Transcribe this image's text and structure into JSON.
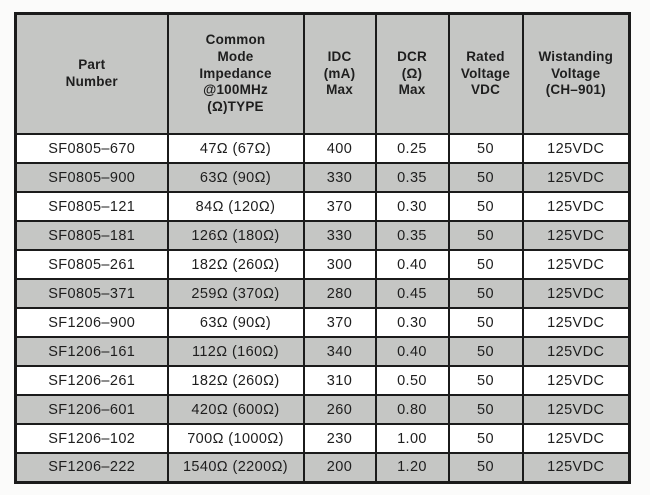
{
  "colors": {
    "header_bg": "#c5c6c4",
    "row_alt_bg": "#c5c6c4",
    "row_bg": "#ffffff",
    "border": "#1b1b1b",
    "text": "#1e1e1e"
  },
  "table": {
    "columns": [
      {
        "id": "part-number",
        "label": "Part\nNumber"
      },
      {
        "id": "common-mode-impedance",
        "label": "Common\nMode\nImpedance\n@100MHz\n(Ω)TYPE"
      },
      {
        "id": "idc-max",
        "label": "IDC\n(mA)\nMax"
      },
      {
        "id": "dcr-max",
        "label": "DCR\n(Ω)\nMax"
      },
      {
        "id": "rated-voltage",
        "label": "Rated\nVoltage\nVDC"
      },
      {
        "id": "wistanding-voltage",
        "label": "Wistanding\nVoltage\n(CH–901)"
      }
    ],
    "rows": [
      [
        "SF0805–670",
        "47Ω (67Ω)",
        "400",
        "0.25",
        "50",
        "125VDC"
      ],
      [
        "SF0805–900",
        "63Ω (90Ω)",
        "330",
        "0.35",
        "50",
        "125VDC"
      ],
      [
        "SF0805–121",
        "84Ω (120Ω)",
        "370",
        "0.30",
        "50",
        "125VDC"
      ],
      [
        "SF0805–181",
        "126Ω (180Ω)",
        "330",
        "0.35",
        "50",
        "125VDC"
      ],
      [
        "SF0805–261",
        "182Ω (260Ω)",
        "300",
        "0.40",
        "50",
        "125VDC"
      ],
      [
        "SF0805–371",
        "259Ω (370Ω)",
        "280",
        "0.45",
        "50",
        "125VDC"
      ],
      [
        "SF1206–900",
        "63Ω (90Ω)",
        "370",
        "0.30",
        "50",
        "125VDC"
      ],
      [
        "SF1206–161",
        "112Ω (160Ω)",
        "340",
        "0.40",
        "50",
        "125VDC"
      ],
      [
        "SF1206–261",
        "182Ω (260Ω)",
        "310",
        "0.50",
        "50",
        "125VDC"
      ],
      [
        "SF1206–601",
        "420Ω (600Ω)",
        "260",
        "0.80",
        "50",
        "125VDC"
      ],
      [
        "SF1206–102",
        "700Ω (1000Ω)",
        "230",
        "1.00",
        "50",
        "125VDC"
      ],
      [
        "SF1206–222",
        "1540Ω (2200Ω)",
        "200",
        "1.20",
        "50",
        "125VDC"
      ]
    ]
  }
}
